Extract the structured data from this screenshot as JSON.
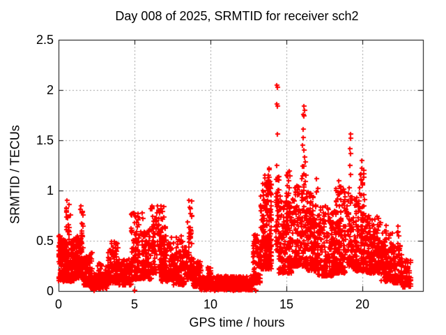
{
  "figure": {
    "title": "Day 008 of 2025, SRMTID for receiver sch2",
    "xlabel": "GPS time / hours",
    "ylabel": "SRMTID / TECUs"
  },
  "chart_data": {
    "type": "scatter",
    "title": "Day 008 of 2025, SRMTID for receiver sch2",
    "xlabel": "GPS time / hours",
    "ylabel": "SRMTID / TECUs",
    "series_name": "SRMTID",
    "marker": "plus",
    "marker_color": "#ff0000",
    "axis_color": "#000000",
    "grid_color": "#9e9e9e",
    "background": "#ffffff",
    "grid": "dotted",
    "legend": "none",
    "xlim": [
      0,
      24
    ],
    "ylim": [
      0,
      2.5
    ],
    "xticks": [
      0,
      5,
      10,
      15,
      20
    ],
    "yticks": [
      0,
      0.5,
      1,
      1.5,
      2,
      2.5
    ],
    "xtick_labels": [
      "0",
      "5",
      "10",
      "15",
      "20"
    ],
    "ytick_labels": [
      "0",
      "0.5",
      "1",
      "1.5",
      "2",
      "2.5"
    ],
    "x_start": 0.0,
    "x_end": 23.2,
    "clusters_note": "dense scatter bands: [x_start_h, x_end_h, y_min_TECU, y_max_TECU, n_points]",
    "clusters": [
      [
        0.0,
        0.15,
        0.35,
        0.55,
        25
      ],
      [
        0.0,
        1.05,
        0.1,
        0.52,
        250
      ],
      [
        0.45,
        0.75,
        0.55,
        0.9,
        16
      ],
      [
        1.0,
        1.62,
        0.13,
        0.55,
        150
      ],
      [
        1.4,
        1.62,
        0.55,
        0.82,
        14
      ],
      [
        1.62,
        2.2,
        0.06,
        0.4,
        110
      ],
      [
        2.1,
        3.2,
        0.03,
        0.18,
        140
      ],
      [
        2.25,
        2.45,
        0.005,
        0.06,
        8
      ],
      [
        2.6,
        3.1,
        0.12,
        0.28,
        25
      ],
      [
        3.2,
        3.95,
        0.08,
        0.5,
        110
      ],
      [
        3.95,
        4.75,
        0.06,
        0.32,
        110
      ],
      [
        4.75,
        5.35,
        0.12,
        0.78,
        90
      ],
      [
        5.35,
        6.1,
        0.12,
        0.62,
        110
      ],
      [
        6.1,
        7.05,
        0.18,
        0.86,
        130
      ],
      [
        6.7,
        7.6,
        0.1,
        0.55,
        130
      ],
      [
        7.6,
        8.45,
        0.06,
        0.55,
        120
      ],
      [
        8.5,
        8.8,
        0.12,
        0.9,
        55
      ],
      [
        8.8,
        9.35,
        0.05,
        0.3,
        80
      ],
      [
        9.35,
        12.8,
        0.015,
        0.15,
        470
      ],
      [
        9.8,
        10.05,
        0.12,
        0.24,
        22
      ],
      [
        12.8,
        13.3,
        0.08,
        0.62,
        85
      ],
      [
        13.3,
        14.05,
        0.22,
        1.08,
        210
      ],
      [
        13.55,
        13.95,
        1.05,
        1.25,
        12
      ],
      [
        14.28,
        14.5,
        0.4,
        1.15,
        45
      ],
      [
        14.5,
        15.35,
        0.18,
        0.95,
        170
      ],
      [
        15.0,
        15.3,
        0.95,
        1.2,
        10
      ],
      [
        15.4,
        16.3,
        0.25,
        1.05,
        175
      ],
      [
        16.0,
        16.28,
        1.05,
        1.45,
        10
      ],
      [
        16.3,
        17.1,
        0.2,
        1.0,
        160
      ],
      [
        17.1,
        18.1,
        0.15,
        0.85,
        170
      ],
      [
        18.1,
        18.9,
        0.18,
        1.05,
        170
      ],
      [
        19.0,
        19.35,
        0.25,
        1.05,
        65
      ],
      [
        19.4,
        20.25,
        0.2,
        0.95,
        160
      ],
      [
        19.85,
        20.1,
        0.95,
        1.3,
        12
      ],
      [
        20.25,
        21.2,
        0.18,
        0.76,
        165
      ],
      [
        21.2,
        22.0,
        0.1,
        0.58,
        130
      ],
      [
        21.45,
        21.62,
        0.45,
        0.68,
        10
      ],
      [
        22.0,
        22.6,
        0.08,
        0.45,
        85
      ],
      [
        22.25,
        22.45,
        0.35,
        0.66,
        12
      ],
      [
        22.6,
        23.2,
        0.04,
        0.32,
        65
      ]
    ],
    "outliers_note": "individually visible points: [x_hours, y_TECU]",
    "outliers": [
      [
        0.55,
        0.9
      ],
      [
        0.52,
        0.8
      ],
      [
        0.58,
        0.73
      ],
      [
        1.45,
        0.85
      ],
      [
        1.5,
        0.78
      ],
      [
        4.95,
        0.78
      ],
      [
        5.05,
        0.74
      ],
      [
        5.5,
        0.78
      ],
      [
        5.55,
        0.72
      ],
      [
        6.75,
        0.85
      ],
      [
        6.7,
        0.8
      ],
      [
        8.6,
        0.9
      ],
      [
        8.62,
        0.83
      ],
      [
        13.85,
        1.22
      ],
      [
        13.8,
        1.15
      ],
      [
        14.38,
        2.05
      ],
      [
        14.42,
        2.03
      ],
      [
        14.38,
        1.86
      ],
      [
        14.42,
        1.84
      ],
      [
        14.4,
        1.56
      ],
      [
        14.36,
        1.25
      ],
      [
        15.1,
        1.18
      ],
      [
        15.15,
        1.1
      ],
      [
        16.15,
        1.84
      ],
      [
        16.18,
        1.8
      ],
      [
        16.12,
        1.76
      ],
      [
        16.15,
        1.74
      ],
      [
        16.1,
        1.61
      ],
      [
        16.13,
        1.53
      ],
      [
        16.05,
        1.45
      ],
      [
        16.2,
        1.33
      ],
      [
        16.17,
        1.24
      ],
      [
        17.0,
        1.12
      ],
      [
        17.05,
        1.02
      ],
      [
        18.45,
        1.1
      ],
      [
        18.5,
        1.04
      ],
      [
        19.22,
        1.56
      ],
      [
        19.25,
        1.52
      ],
      [
        19.2,
        1.42
      ],
      [
        19.24,
        1.37
      ],
      [
        19.18,
        1.25
      ],
      [
        19.21,
        1.16
      ],
      [
        19.95,
        1.3
      ],
      [
        19.98,
        1.22
      ],
      [
        19.92,
        1.17
      ],
      [
        20.0,
        1.07
      ],
      [
        2.35,
        0.005
      ],
      [
        5.0,
        0.005
      ],
      [
        10.3,
        0.01
      ],
      [
        10.9,
        0.012
      ],
      [
        11.5,
        0.01
      ],
      [
        13.0,
        0.006
      ]
    ]
  }
}
